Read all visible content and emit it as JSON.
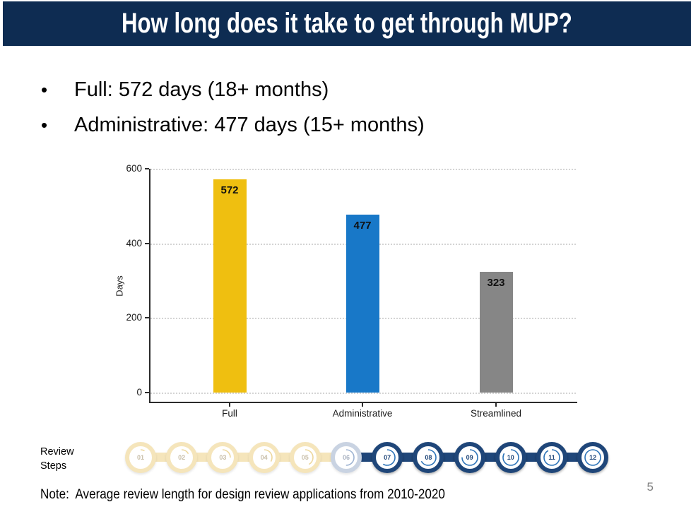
{
  "slide": {
    "title": "How long does it take to get through MUP?",
    "note": "Note:  Average review length for design review applications from 2010-2020",
    "page_number": "5"
  },
  "bullets": [
    "Full: 572 days (18+ months)",
    "Administrative: 477 days (15+ months)"
  ],
  "chart_data": {
    "type": "bar",
    "categories": [
      "Full",
      "Administrative",
      "Streamlined"
    ],
    "values": [
      572,
      477,
      323
    ],
    "value_labels": [
      "572",
      "477",
      "323"
    ],
    "bar_colors": [
      "#EFBF10",
      "#1878C8",
      "#868686"
    ],
    "title": "",
    "xlabel": "",
    "ylabel": "Days",
    "ylim": [
      0,
      600
    ],
    "yticks": [
      0,
      200,
      400,
      600
    ],
    "grid": "horizontal dotted",
    "legend": "none"
  },
  "review_steps": {
    "label_line1": "Review",
    "label_line2": "Steps",
    "steps": [
      {
        "label": "01",
        "group": "cream"
      },
      {
        "label": "02",
        "group": "cream"
      },
      {
        "label": "03",
        "group": "cream"
      },
      {
        "label": "04",
        "group": "cream"
      },
      {
        "label": "05",
        "group": "cream"
      },
      {
        "label": "06",
        "group": "transition"
      },
      {
        "label": "07",
        "group": "navy"
      },
      {
        "label": "08",
        "group": "navy"
      },
      {
        "label": "09",
        "group": "navy"
      },
      {
        "label": "10",
        "group": "navy"
      },
      {
        "label": "11",
        "group": "navy"
      },
      {
        "label": "12",
        "group": "navy"
      }
    ],
    "colors": {
      "cream_ring": "#F5E5BB",
      "cream_text": "#C9BFA9",
      "cream_arc": "#EDD79C",
      "transition_ring": "#C9D3E2",
      "transition_text": "#A9B2C1",
      "transition_arc": "#9FB4D2",
      "navy_ring": "#1F4679",
      "navy_text": "#1F4679",
      "navy_arc": "#2E74B8"
    }
  },
  "theme": {
    "header_bg": "#0E2C52",
    "header_text": "#FFFFFF",
    "axis_color": "#2B2B2B",
    "gridline_color": "#D4D4D4",
    "page_number_color": "#7F7F7F"
  }
}
